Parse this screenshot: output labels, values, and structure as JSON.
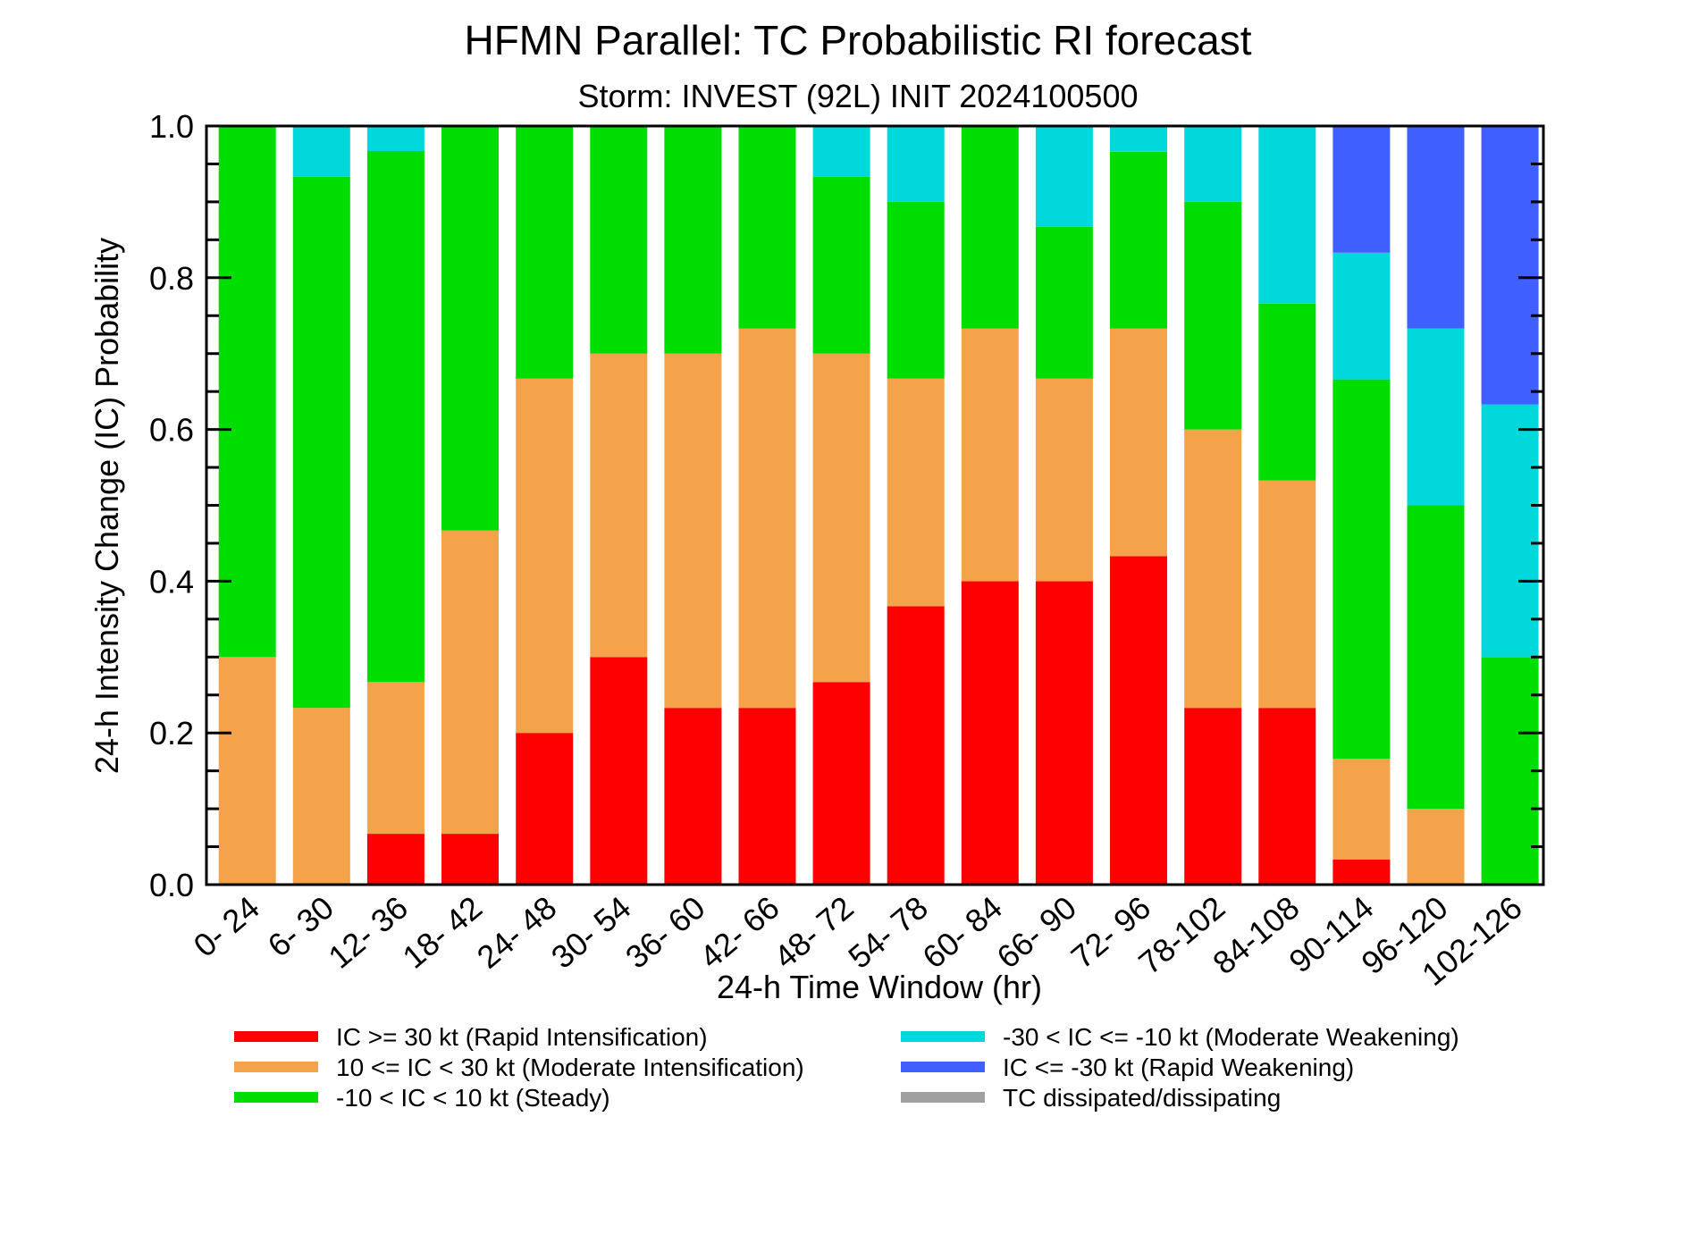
{
  "chart_data": {
    "type": "bar",
    "stacked": true,
    "title": "HFMN Parallel: TC Probabilistic RI forecast",
    "subtitle": "Storm: INVEST (92L) INIT 2024100500",
    "xlabel": "24-h Time Window (hr)",
    "ylabel": "24-h Intensity Change (IC) Probability",
    "ylim": [
      0,
      1
    ],
    "yticks": [
      "0.0",
      "0.2",
      "0.4",
      "0.6",
      "0.8",
      "1.0"
    ],
    "categories": [
      "0- 24",
      "6- 30",
      "12- 36",
      "18- 42",
      "24- 48",
      "30- 54",
      "36- 60",
      "42- 66",
      "48- 72",
      "54- 78",
      "60- 84",
      "66- 90",
      "72- 96",
      "78-102",
      "84-108",
      "90-114",
      "96-120",
      "102-126"
    ],
    "series": [
      {
        "name": "IC >= 30 kt (Rapid Intensification)",
        "color": "#ff0000",
        "values": [
          0,
          0,
          0.067,
          0.067,
          0.2,
          0.3,
          0.233,
          0.233,
          0.267,
          0.367,
          0.4,
          0.4,
          0.433,
          0.233,
          0.233,
          0.033,
          0,
          0
        ]
      },
      {
        "name": "10 <= IC < 30 kt (Moderate Intensification)",
        "color": "#f4a34a",
        "values": [
          0.3,
          0.233,
          0.2,
          0.4,
          0.467,
          0.4,
          0.467,
          0.5,
          0.433,
          0.3,
          0.333,
          0.267,
          0.3,
          0.367,
          0.3,
          0.133,
          0.1,
          0
        ]
      },
      {
        "name": "-10 < IC < 10 kt (Steady)",
        "color": "#00dd00",
        "values": [
          0.7,
          0.7,
          0.7,
          0.533,
          0.333,
          0.3,
          0.3,
          0.267,
          0.233,
          0.233,
          0.267,
          0.2,
          0.233,
          0.3,
          0.233,
          0.5,
          0.4,
          0.3
        ]
      },
      {
        "name": "-30 < IC <= -10 kt (Moderate Weakening)",
        "color": "#00d8dc",
        "values": [
          0,
          0.067,
          0.033,
          0,
          0,
          0,
          0,
          0,
          0.067,
          0.1,
          0,
          0.133,
          0.033,
          0.1,
          0.233,
          0.167,
          0.233,
          0.333
        ]
      },
      {
        "name": "IC <= -30 kt (Rapid Weakening)",
        "color": "#3f5fff",
        "values": [
          0,
          0,
          0,
          0,
          0,
          0,
          0,
          0,
          0,
          0,
          0,
          0,
          0,
          0,
          0,
          0.167,
          0.267,
          0.367
        ]
      },
      {
        "name": "TC dissipated/dissipating",
        "color": "#a0a0a0",
        "values": [
          0,
          0,
          0,
          0,
          0,
          0,
          0,
          0,
          0,
          0,
          0,
          0,
          0,
          0,
          0,
          0,
          0,
          0
        ]
      }
    ]
  }
}
